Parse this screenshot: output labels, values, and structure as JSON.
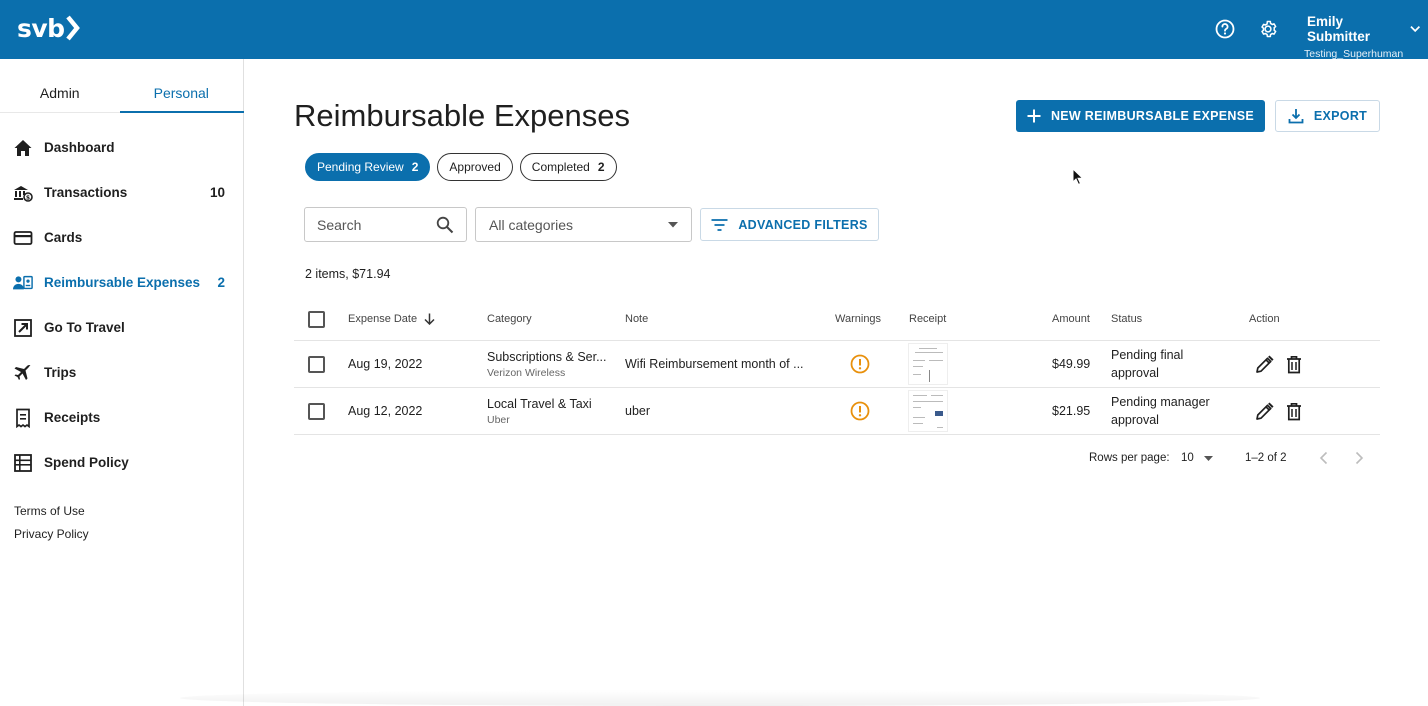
{
  "brand": {
    "logo_text": "svb"
  },
  "header": {
    "help_icon": "help-circle-icon",
    "settings_icon": "gear-icon",
    "user_name": "Emily Submitter",
    "user_org": "Testing_Superhuman"
  },
  "sidebar": {
    "tabs": [
      {
        "label": "Admin"
      },
      {
        "label": "Personal"
      }
    ],
    "items": [
      {
        "label": "Dashboard",
        "icon": "home-icon",
        "count": ""
      },
      {
        "label": "Transactions",
        "icon": "bank-icon",
        "count": "10"
      },
      {
        "label": "Cards",
        "icon": "card-icon",
        "count": ""
      },
      {
        "label": "Reimbursable Expenses",
        "icon": "people-icon",
        "count": "2"
      },
      {
        "label": "Go To Travel",
        "icon": "external-link-icon",
        "count": ""
      },
      {
        "label": "Trips",
        "icon": "airplane-icon",
        "count": ""
      },
      {
        "label": "Receipts",
        "icon": "receipt-icon",
        "count": ""
      },
      {
        "label": "Spend Policy",
        "icon": "list-icon",
        "count": ""
      }
    ],
    "links": [
      {
        "label": "Terms of Use"
      },
      {
        "label": "Privacy Policy"
      }
    ]
  },
  "main": {
    "title": "Reimbursable Expenses",
    "new_button": "NEW REIMBURSABLE EXPENSE",
    "export_button": "EXPORT",
    "chips": [
      {
        "label": "Pending Review",
        "count": "2"
      },
      {
        "label": "Approved",
        "count": ""
      },
      {
        "label": "Completed",
        "count": "2"
      }
    ],
    "search_placeholder": "Search",
    "category_select": "All categories",
    "advanced_filters": "ADVANCED FILTERS",
    "summary": "2 items, $71.94"
  },
  "table": {
    "headers": {
      "date": "Expense Date",
      "category": "Category",
      "note": "Note",
      "warnings": "Warnings",
      "receipt": "Receipt",
      "amount": "Amount",
      "status": "Status",
      "action": "Action"
    },
    "rows": [
      {
        "date": "Aug 19, 2022",
        "category": "Subscriptions & Ser...",
        "merchant": "Verizon Wireless",
        "note": "Wifi Reimbursement month of ...",
        "amount": "$49.99",
        "status": "Pending final approval"
      },
      {
        "date": "Aug 12, 2022",
        "category": "Local Travel & Taxi",
        "merchant": "Uber",
        "note": "uber",
        "amount": "$21.95",
        "status": "Pending manager approval"
      }
    ]
  },
  "pagination": {
    "rows_per_page_label": "Rows per page:",
    "rows_per_page": "10",
    "range": "1–2 of 2"
  },
  "colors": {
    "brand": "#0b6fad",
    "warning": "#e8900c"
  }
}
